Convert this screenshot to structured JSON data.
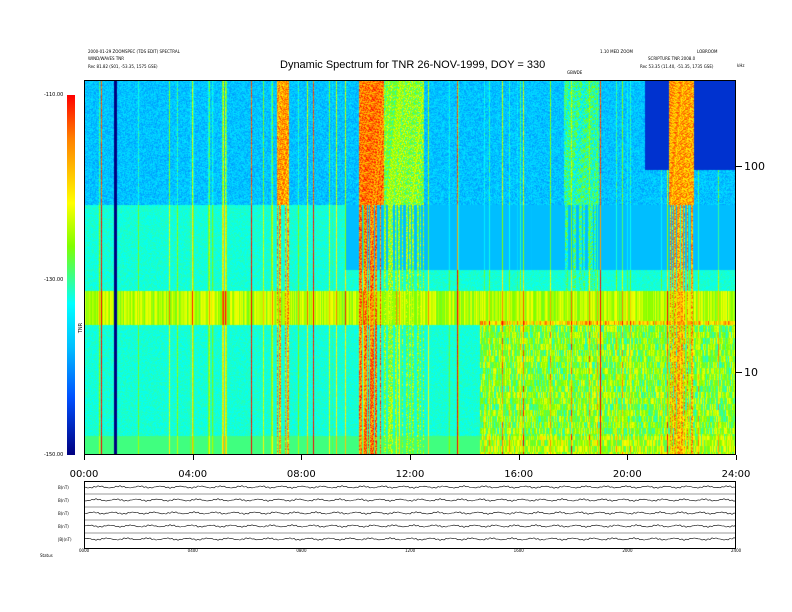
{
  "header": {
    "left_line1": "2000-01-29 ZOOMSPEC (TDS EDIT)  SPECTRAL",
    "left_line2": "WIND/WAVES TNR",
    "left_line3": "Rec    81.82 (S01, -53.35, 1575 GSE)",
    "right_line1": "1.10 MED ZOOM",
    "right_line2": "SCRIPTURE TNR 2008.0",
    "right_line3": "Rec    53.35 (11.40, -51.35, 1735 GSE)",
    "right_corner": "LOBROOM",
    "marker_label": "GBWDE"
  },
  "chart_data": {
    "type": "heatmap",
    "title": "Dynamic Spectrum for TNR 26-NOV-1999, DOY = 330",
    "x_ticks": [
      "00:00",
      "04:00",
      "08:00",
      "12:00",
      "16:00",
      "20:00",
      "24:00"
    ],
    "xlim_hours": [
      0,
      24
    ],
    "y_ticks": [
      "100",
      "10"
    ],
    "y_unit": "kHz",
    "y_scale": "log",
    "colorbar": {
      "ticks": [
        "-110.00",
        "-130.00",
        "-150.00"
      ],
      "label": "TNR",
      "range_db": [
        -150,
        -110
      ]
    },
    "bottom_panel_labels": [
      "B(nT)",
      "B(nT)",
      "B(nT)",
      "B(nT)",
      "|B|(nT)"
    ],
    "bottom_x_ticks": [
      "0000",
      "0400",
      "0800",
      "1200",
      "1600",
      "2000",
      "2400"
    ],
    "footer_left": "Status"
  }
}
